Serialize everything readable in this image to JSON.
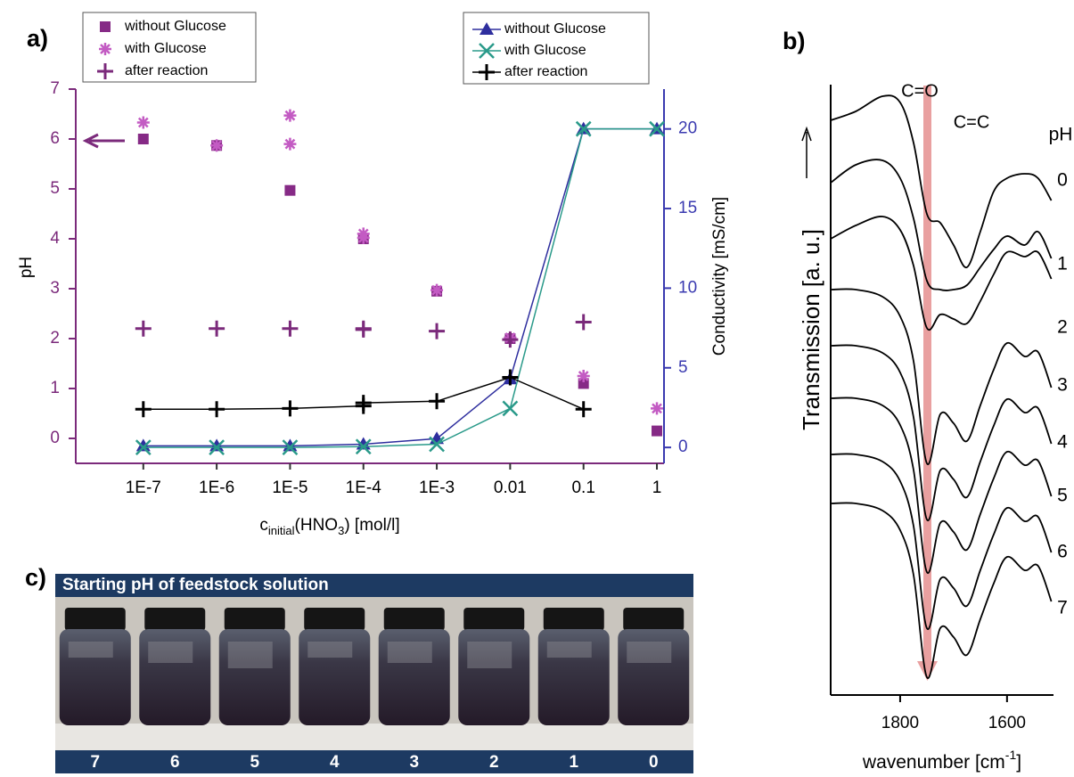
{
  "chart_data": [
    {
      "type": "scatter",
      "panel_label": "a)",
      "xlabel_parts": [
        "c",
        "initial",
        "(HNO",
        "3",
        ") [mol/l]"
      ],
      "ylabel": "pH",
      "y2label": "Conductivity [mS/cm]",
      "xscale": "log",
      "xlim": [
        1.2e-08,
        1.25
      ],
      "xticks": [
        {
          "value": 1e-07,
          "label": "1E-7"
        },
        {
          "value": 1e-06,
          "label": "1E-6"
        },
        {
          "value": 1e-05,
          "label": "1E-5"
        },
        {
          "value": 0.0001,
          "label": "1E-4"
        },
        {
          "value": 0.001,
          "label": "1E-3"
        },
        0.01,
        0.1,
        1
      ],
      "ylim": [
        -0.5,
        7
      ],
      "yticks": [
        0,
        1,
        2,
        3,
        4,
        5,
        6,
        7
      ],
      "y2lim": [
        -1,
        22.5
      ],
      "y2ticks": [
        0,
        5,
        10,
        15,
        20
      ],
      "axis_color": "#7b2a7b",
      "y2_axis_color": "#3a3ab0",
      "series": [
        {
          "name": "without Glucose",
          "color": "#862a86",
          "marker": "square",
          "line": false,
          "x": [
            1e-07,
            1e-06,
            1e-05,
            0.0001,
            0.001,
            0.01,
            0.1,
            1
          ],
          "values": [
            6.0,
            5.87,
            4.97,
            4.0,
            2.95,
            2.0,
            1.1,
            0.15
          ]
        },
        {
          "name": "with Glucose",
          "color": "#c35bc3",
          "marker": "asterisk",
          "line": false,
          "x": [
            1e-07,
            1e-06,
            1e-05,
            1e-05,
            0.0001,
            0.0001,
            0.001,
            0.01,
            0.1,
            1
          ],
          "values": [
            6.33,
            5.87,
            6.47,
            5.9,
            4.1,
            4.02,
            2.97,
            2.02,
            1.25,
            0.6
          ]
        },
        {
          "name": "after reaction",
          "color": "#7b2a7b",
          "marker": "plus",
          "line": false,
          "x": [
            1e-07,
            1e-06,
            1e-05,
            0.0001,
            0.0001,
            0.001,
            0.01,
            0.1
          ],
          "values": [
            2.2,
            2.2,
            2.2,
            2.2,
            2.18,
            2.15,
            1.98,
            2.33
          ]
        },
        {
          "name": "without Glucose",
          "color": "#2e2e9e",
          "marker": "triangle",
          "line": true,
          "axis": "y2",
          "x": [
            1e-07,
            1e-06,
            1e-05,
            0.0001,
            0.001,
            0.01,
            0.1,
            1
          ],
          "values": [
            0.1,
            0.1,
            0.1,
            0.2,
            0.55,
            4.3,
            20,
            20
          ]
        },
        {
          "name": "with Glucose",
          "color": "#2a9a8a",
          "marker": "x",
          "line": true,
          "axis": "y2",
          "x": [
            1e-07,
            1e-06,
            1e-05,
            0.0001,
            0.001,
            0.01,
            0.1,
            1
          ],
          "values": [
            0,
            0,
            0,
            0.05,
            0.2,
            2.45,
            20,
            20
          ]
        },
        {
          "name": "after reaction",
          "color": "#000000",
          "marker": "plus",
          "line": true,
          "axis": "y2",
          "x": [
            1e-07,
            1e-06,
            1e-05,
            0.0001,
            0.0001,
            0.001,
            0.01,
            0.1
          ],
          "values": [
            2.4,
            2.4,
            2.45,
            2.6,
            2.8,
            2.9,
            4.4,
            2.4
          ]
        }
      ]
    },
    {
      "type": "line",
      "panel_label": "b)",
      "ylabel": "Transmission [a. u.]",
      "xlabel_parts": [
        "wavenumber [cm",
        "-1",
        "]"
      ],
      "legend_title": "pH",
      "annotations": [
        "C=O",
        "C=C"
      ],
      "xlim": [
        1930,
        1513
      ],
      "xticks": [
        1800,
        1600
      ],
      "ylim": [
        0,
        700
      ],
      "x": [
        1930,
        1883,
        1833,
        1800,
        1775,
        1750,
        1725,
        1700,
        1675,
        1650,
        1625,
        1600,
        1567,
        1542,
        1517
      ],
      "series": [
        {
          "name": "0",
          "color": "#000000",
          "values": [
            645,
            655,
            672,
            665,
            620,
            540,
            530,
            505,
            480,
            520,
            565,
            580,
            585,
            580,
            555
          ]
        },
        {
          "name": "1",
          "color": "#000000",
          "values": [
            575,
            595,
            600,
            580,
            535,
            465,
            455,
            455,
            460,
            480,
            500,
            515,
            505,
            520,
            490
          ]
        },
        {
          "name": "2",
          "color": "#000000",
          "values": [
            512,
            527,
            537,
            522,
            482,
            412,
            427,
            422,
            417,
            442,
            472,
            497,
            492,
            497,
            467
          ]
        },
        {
          "name": "3",
          "color": "#000000",
          "values": [
            455,
            455,
            447,
            425,
            375,
            260,
            315,
            305,
            285,
            325,
            365,
            395,
            380,
            385,
            345
          ]
        },
        {
          "name": "4",
          "color": "#000000",
          "values": [
            392,
            392,
            384,
            362,
            312,
            197,
            252,
            242,
            222,
            262,
            302,
            332,
            317,
            322,
            282
          ]
        },
        {
          "name": "5",
          "color": "#000000",
          "values": [
            333,
            333,
            325,
            303,
            253,
            138,
            193,
            183,
            163,
            203,
            243,
            273,
            258,
            263,
            223
          ]
        },
        {
          "name": "6",
          "color": "#000000",
          "values": [
            270,
            270,
            262,
            240,
            190,
            75,
            130,
            120,
            100,
            140,
            180,
            210,
            195,
            200,
            160
          ]
        },
        {
          "name": "7",
          "color": "#000000",
          "values": [
            215,
            215,
            207,
            185,
            135,
            20,
            75,
            65,
            45,
            85,
            125,
            155,
            140,
            145,
            105
          ]
        }
      ]
    }
  ],
  "photo": {
    "panel_label": "c)",
    "title": "Starting pH of feedstock solution",
    "labels": [
      "7",
      "6",
      "5",
      "4",
      "3",
      "2",
      "1",
      "0"
    ]
  }
}
